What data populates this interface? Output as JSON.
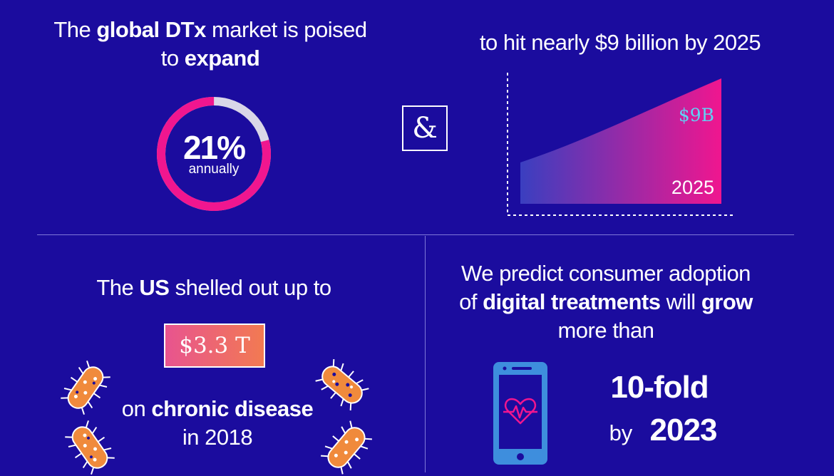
{
  "market": {
    "headline_prefix": "The",
    "headline_bold1": "global DTx",
    "headline_mid": "market is poised",
    "headline_to": "to",
    "headline_bold2": "expand",
    "growth_value": "21%",
    "growth_fraction": 0.79,
    "growth_label": "annually"
  },
  "connector": {
    "symbol": "&"
  },
  "projection": {
    "headline": "to hit nearly $9 billion by 2025",
    "value_label": "$9B",
    "year_label": "2025"
  },
  "us_spend": {
    "line_prefix": "The",
    "line_bold": "US",
    "line_suffix": "shelled out up to",
    "amount": "$3.3 T",
    "on_word": "on",
    "bold_topic": "chronic disease",
    "year_line": "in 2018"
  },
  "adoption": {
    "line1": "We predict consumer adoption",
    "line2_of": "of",
    "line2_bold1": "digital treatments",
    "line2_will": "will",
    "line2_bold2": "grow",
    "line3": "more than",
    "fold": "10-fold",
    "by_word": "by",
    "by_year": "2023"
  },
  "icons": {
    "germ": "bacteria-icon",
    "phone": "smartphone-heartbeat-icon"
  },
  "colors": {
    "background": "#1B0C9E",
    "accent_pink": "#F0168F",
    "ring_track": "#D9D6E8",
    "chart_start": "#3A3FC0",
    "chart_end": "#F0168F",
    "value_cyan": "#5FD3F5",
    "germ_orange": "#F08A3C",
    "phone_blue": "#3E8EDD"
  }
}
